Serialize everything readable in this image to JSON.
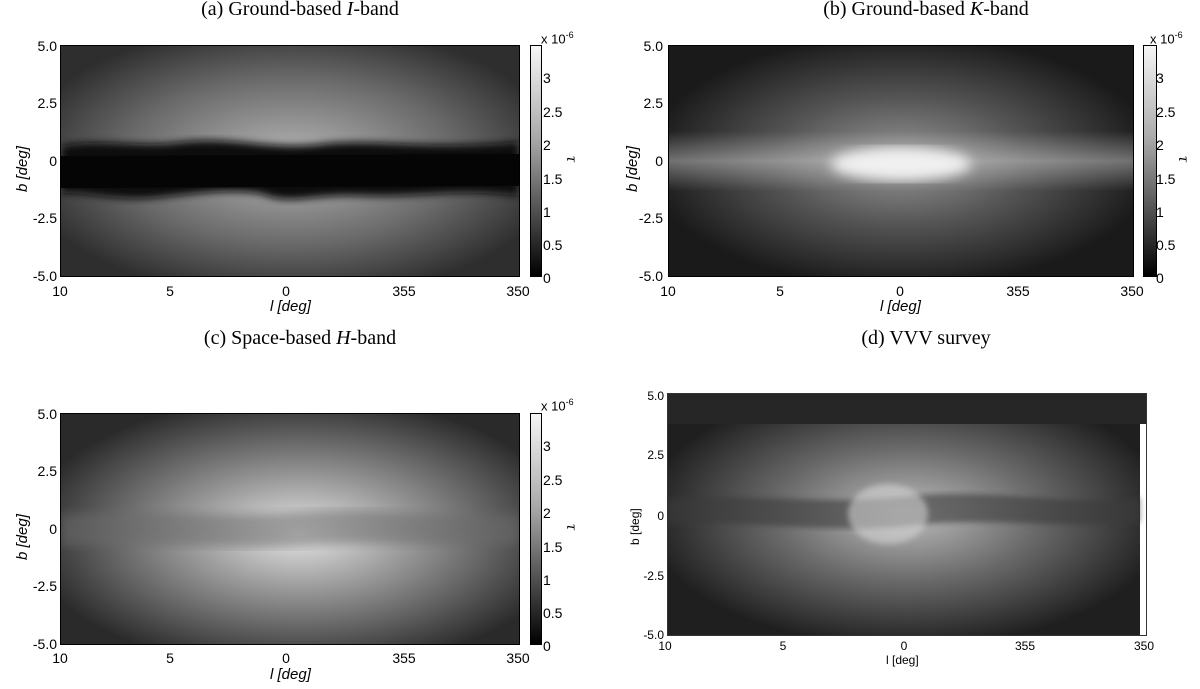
{
  "panels": [
    {
      "id": "a",
      "title_prefix": "(a) Ground-based ",
      "title_italic": "I",
      "title_suffix": "-band",
      "xlabel": "l [deg]",
      "ylabel": "b [deg]",
      "xticks": [
        "10",
        "5",
        "0",
        "355",
        "350"
      ],
      "yticks": [
        "5.0",
        "2.5",
        "0",
        "-2.5",
        "-5.0"
      ],
      "colorbar": {
        "multiplier": "x 10",
        "exponent": "-6",
        "label": "τ",
        "ticks": [
          "3",
          "2.5",
          "2",
          "1.5",
          "1",
          "0.5",
          "0"
        ]
      }
    },
    {
      "id": "b",
      "title_prefix": "(b) Ground-based ",
      "title_italic": "K",
      "title_suffix": "-band",
      "xlabel": "l [deg]",
      "ylabel": "b [deg]",
      "xticks": [
        "10",
        "5",
        "0",
        "355",
        "350"
      ],
      "yticks": [
        "5.0",
        "2.5",
        "0",
        "-2.5",
        "-5.0"
      ],
      "colorbar": {
        "multiplier": "x 10",
        "exponent": "-6",
        "label": "τ",
        "ticks": [
          "3",
          "2.5",
          "2",
          "1.5",
          "1",
          "0.5",
          "0"
        ]
      }
    },
    {
      "id": "c",
      "title_prefix": "(c) Space-based ",
      "title_italic": "H",
      "title_suffix": "-band",
      "xlabel": "l [deg]",
      "ylabel": "b [deg]",
      "xticks": [
        "10",
        "5",
        "0",
        "355",
        "350"
      ],
      "yticks": [
        "5.0",
        "2.5",
        "0",
        "-2.5",
        "-5.0"
      ],
      "colorbar": {
        "multiplier": "x 10",
        "exponent": "-6",
        "label": "τ",
        "ticks": [
          "3",
          "2.5",
          "2",
          "1.5",
          "1",
          "0.5",
          "0"
        ]
      }
    },
    {
      "id": "d",
      "title_prefix": "(d) VVV survey",
      "title_italic": "",
      "title_suffix": "",
      "xlabel": "l [deg]",
      "ylabel": "b [deg]",
      "xticks": [
        "10",
        "5",
        "0",
        "355",
        "350"
      ],
      "yticks": [
        "5.0",
        "2.5",
        "0",
        "-2.5",
        "-5.0"
      ]
    }
  ],
  "chart_data": [
    {
      "type": "heatmap",
      "title": "(a) Ground-based I-band",
      "xlabel": "l [deg]",
      "ylabel": "b [deg]",
      "xlim": [
        10,
        350
      ],
      "ylim": [
        -5.0,
        5.0
      ],
      "colorbar_label": "τ",
      "colorbar_range": [
        0,
        3.3
      ],
      "colorbar_scale": "x 10^-6",
      "colormap": "grayscale",
      "feature": "dark dust lane along b≈0 (τ≈0), brighter regions above and below near l=0"
    },
    {
      "type": "heatmap",
      "title": "(b) Ground-based K-band",
      "xlabel": "l [deg]",
      "ylabel": "b [deg]",
      "xlim": [
        10,
        350
      ],
      "ylim": [
        -5.0,
        5.0
      ],
      "colorbar_label": "τ",
      "colorbar_range": [
        0,
        3.3
      ],
      "colorbar_scale": "x 10^-6",
      "colormap": "grayscale",
      "feature": "bright concentration at the Galactic centre along the plane"
    },
    {
      "type": "heatmap",
      "title": "(c) Space-based H-band",
      "xlabel": "l [deg]",
      "ylabel": "b [deg]",
      "xlim": [
        10,
        350
      ],
      "ylim": [
        -5.0,
        5.0
      ],
      "colorbar_label": "τ",
      "colorbar_range": [
        0,
        3.3
      ],
      "colorbar_scale": "x 10^-6",
      "colormap": "grayscale",
      "feature": "broad bright bulge centred at l=0, b=0"
    },
    {
      "type": "heatmap",
      "title": "(d) VVV survey",
      "xlabel": "l [deg]",
      "ylabel": "b [deg]",
      "xlim": [
        10,
        350
      ],
      "ylim": [
        -5.0,
        5.0
      ],
      "colormap": "grayscale",
      "feature": "observed optical depth map with patchy structure"
    }
  ]
}
